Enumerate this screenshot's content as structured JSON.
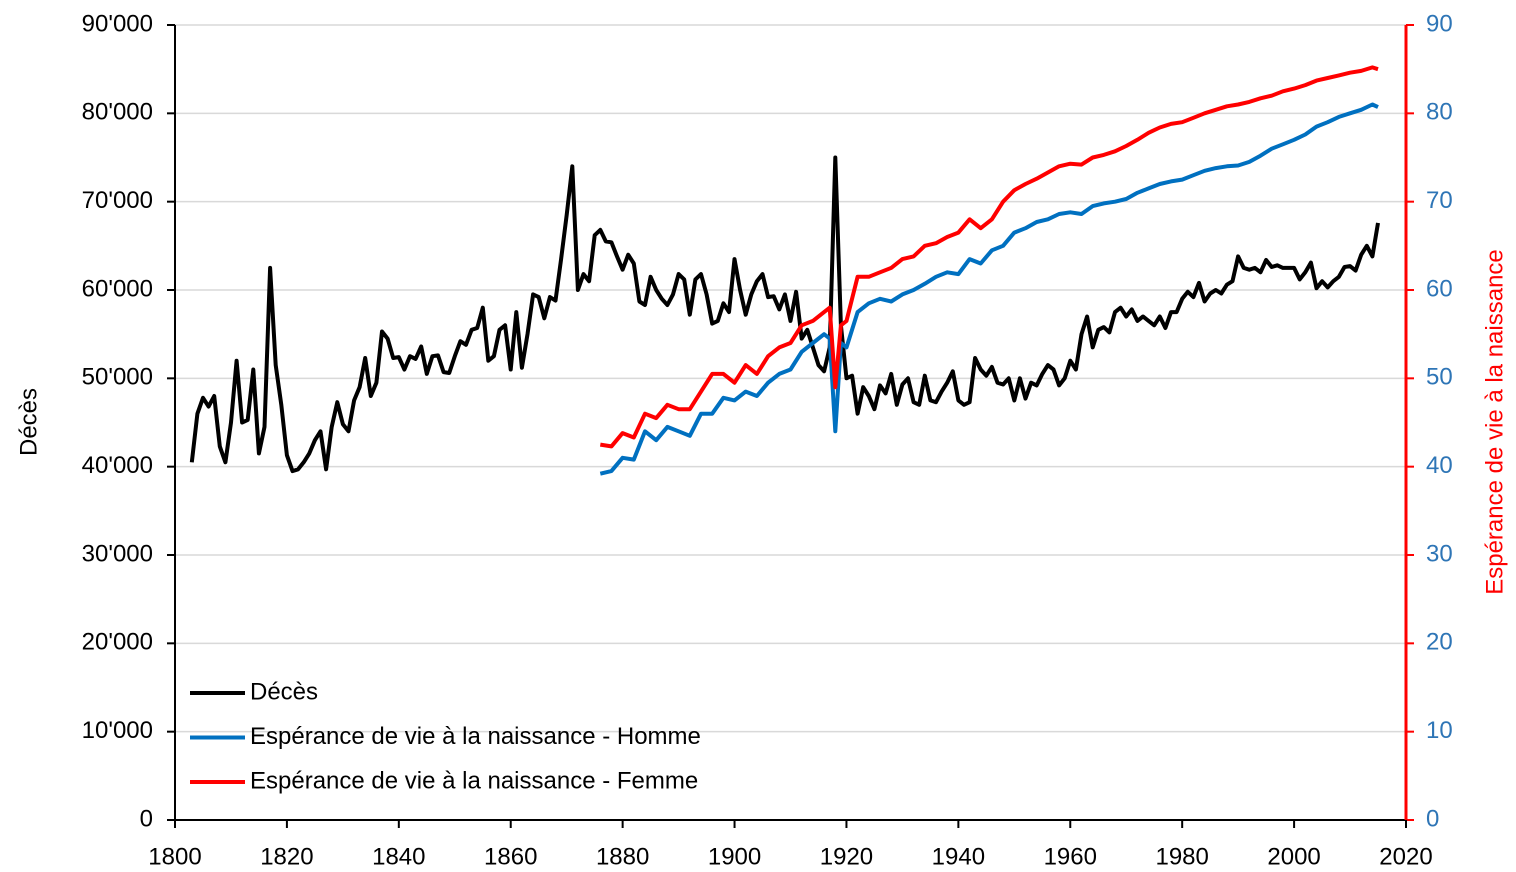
{
  "chart_data": {
    "type": "line",
    "y_label": "Décès",
    "y2_label": "Espérance de vie à la naissance",
    "xlim": [
      1800,
      2020
    ],
    "xticks": [
      1800,
      1820,
      1840,
      1860,
      1880,
      1900,
      1920,
      1940,
      1960,
      1980,
      2000,
      2020
    ],
    "ylim": [
      0,
      90000
    ],
    "yticks": [
      {
        "value": 0,
        "label": "0"
      },
      {
        "value": 10000,
        "label": "10'000"
      },
      {
        "value": 20000,
        "label": "20'000"
      },
      {
        "value": 30000,
        "label": "30'000"
      },
      {
        "value": 40000,
        "label": "40'000"
      },
      {
        "value": 50000,
        "label": "50'000"
      },
      {
        "value": 60000,
        "label": "60'000"
      },
      {
        "value": 70000,
        "label": "70'000"
      },
      {
        "value": 80000,
        "label": "80'000"
      },
      {
        "value": 90000,
        "label": "90'000"
      }
    ],
    "y2lim": [
      0,
      90
    ],
    "y2ticks": [
      0,
      10,
      20,
      30,
      40,
      50,
      60,
      70,
      80,
      90
    ],
    "grid": true,
    "legend": "lower-left",
    "series": [
      {
        "name": "Décès",
        "color": "#000000",
        "x": [
          1803,
          1804,
          1805,
          1806,
          1807,
          1808,
          1809,
          1810,
          1811,
          1812,
          1813,
          1814,
          1815,
          1816,
          1817,
          1818,
          1819,
          1820,
          1821,
          1822,
          1823,
          1824,
          1825,
          1826,
          1827,
          1828,
          1829,
          1830,
          1831,
          1832,
          1833,
          1834,
          1835,
          1836,
          1837,
          1838,
          1839,
          1840,
          1841,
          1842,
          1843,
          1844,
          1845,
          1846,
          1847,
          1848,
          1849,
          1850,
          1851,
          1852,
          1853,
          1854,
          1855,
          1856,
          1857,
          1858,
          1859,
          1860,
          1861,
          1862,
          1863,
          1864,
          1865,
          1866,
          1867,
          1868,
          1869,
          1870,
          1871,
          1872,
          1873,
          1874,
          1875,
          1876,
          1877,
          1878,
          1879,
          1880,
          1881,
          1882,
          1883,
          1884,
          1885,
          1886,
          1887,
          1888,
          1889,
          1890,
          1891,
          1892,
          1893,
          1894,
          1895,
          1896,
          1897,
          1898,
          1899,
          1900,
          1901,
          1902,
          1903,
          1904,
          1905,
          1906,
          1907,
          1908,
          1909,
          1910,
          1911,
          1912,
          1913,
          1914,
          1915,
          1916,
          1917,
          1918,
          1919,
          1920,
          1921,
          1922,
          1923,
          1924,
          1925,
          1926,
          1927,
          1928,
          1929,
          1930,
          1931,
          1932,
          1933,
          1934,
          1935,
          1936,
          1937,
          1938,
          1939,
          1940,
          1941,
          1942,
          1943,
          1944,
          1945,
          1946,
          1947,
          1948,
          1949,
          1950,
          1951,
          1952,
          1953,
          1954,
          1955,
          1956,
          1957,
          1958,
          1959,
          1960,
          1961,
          1962,
          1963,
          1964,
          1965,
          1966,
          1967,
          1968,
          1969,
          1970,
          1971,
          1972,
          1973,
          1974,
          1975,
          1976,
          1977,
          1978,
          1979,
          1980,
          1981,
          1982,
          1983,
          1984,
          1985,
          1986,
          1987,
          1988,
          1989,
          1990,
          1991,
          1992,
          1993,
          1994,
          1995,
          1996,
          1997,
          1998,
          1999,
          2000,
          2001,
          2002,
          2003,
          2004,
          2005,
          2006,
          2007,
          2008,
          2009,
          2010,
          2011,
          2012,
          2013,
          2014,
          2015
        ],
        "values": [
          40500,
          46000,
          47800,
          46800,
          48000,
          42300,
          40500,
          45000,
          52000,
          45000,
          45300,
          51000,
          41500,
          44500,
          62500,
          51500,
          47000,
          41300,
          39500,
          39700,
          40500,
          41500,
          43000,
          44000,
          39700,
          44500,
          47300,
          44800,
          44000,
          47500,
          49000,
          52300,
          48000,
          49500,
          55300,
          54500,
          52300,
          52400,
          51000,
          52500,
          52200,
          53600,
          50500,
          52500,
          52600,
          50700,
          50600,
          52500,
          54200,
          53800,
          55500,
          55700,
          58000,
          52000,
          52500,
          55500,
          56000,
          51000,
          57500,
          51200,
          55000,
          59500,
          59200,
          56800,
          59200,
          58800,
          63500,
          68500,
          74000,
          60000,
          61800,
          61000,
          66200,
          66800,
          65500,
          65400,
          63800,
          62300,
          64000,
          63000,
          58700,
          58300,
          61500,
          60000,
          59000,
          58300,
          59500,
          61800,
          61200,
          57200,
          61200,
          61800,
          59500,
          56200,
          56500,
          58500,
          57500,
          63500,
          60000,
          57200,
          59500,
          61000,
          61800,
          59200,
          59300,
          57800,
          59500,
          56500,
          59800,
          54500,
          55500,
          53500,
          51500,
          50800,
          53500,
          75000,
          56000,
          50000,
          50300,
          46000,
          49000,
          48000,
          46500,
          49200,
          48300,
          50500,
          47000,
          49300,
          50000,
          47300,
          47000,
          50300,
          47500,
          47300,
          48500,
          49500,
          50800,
          47500,
          47000,
          47300,
          52300,
          51000,
          50300,
          51300,
          49500,
          49300,
          50000,
          47500,
          50000,
          47700,
          49500,
          49200,
          50500,
          51500,
          51000,
          49200,
          50000,
          52000,
          51000,
          55000,
          57000,
          53500,
          55500,
          55800,
          55200,
          57500,
          58000,
          57000,
          57800,
          56500,
          57000,
          56500,
          56000,
          57000,
          55700,
          57500,
          57500,
          59000,
          59800,
          59200,
          60800,
          58700,
          59600,
          60000,
          59600,
          60600,
          61000,
          63800,
          62500,
          62300,
          62500,
          62000,
          63400,
          62600,
          62800,
          62500,
          62500,
          62500,
          61200,
          62000,
          63100,
          60200,
          61000,
          60300,
          61000,
          61500,
          62600,
          62700,
          62200,
          64000,
          65000,
          63800,
          67600
        ]
      },
      {
        "name": "Espérance de vie à la naissance - Homme",
        "color": "#0070c0",
        "axis": "y2",
        "x": [
          1876,
          1878,
          1880,
          1882,
          1884,
          1886,
          1888,
          1890,
          1892,
          1894,
          1896,
          1898,
          1900,
          1902,
          1904,
          1906,
          1908,
          1910,
          1912,
          1914,
          1916,
          1917,
          1918,
          1919,
          1920,
          1922,
          1924,
          1926,
          1928,
          1930,
          1932,
          1934,
          1936,
          1938,
          1940,
          1942,
          1944,
          1946,
          1948,
          1950,
          1952,
          1954,
          1956,
          1958,
          1960,
          1962,
          1964,
          1966,
          1968,
          1970,
          1972,
          1974,
          1976,
          1978,
          1980,
          1982,
          1984,
          1986,
          1988,
          1990,
          1992,
          1994,
          1996,
          1998,
          2000,
          2002,
          2004,
          2006,
          2008,
          2010,
          2012,
          2014,
          2015
        ],
        "values": [
          39.2,
          39.5,
          41,
          40.8,
          44,
          43,
          44.5,
          44,
          43.5,
          46,
          46,
          47.8,
          47.5,
          48.5,
          48,
          49.5,
          50.5,
          51,
          53,
          54,
          55,
          54.5,
          44,
          54,
          53.5,
          57.5,
          58.5,
          59,
          58.7,
          59.5,
          60,
          60.7,
          61.5,
          62,
          61.8,
          63.5,
          63,
          64.5,
          65,
          66.5,
          67,
          67.7,
          68,
          68.6,
          68.8,
          68.6,
          69.5,
          69.8,
          70,
          70.3,
          71,
          71.5,
          72,
          72.3,
          72.5,
          73,
          73.5,
          73.8,
          74,
          74.1,
          74.5,
          75.2,
          76,
          76.5,
          77,
          77.6,
          78.5,
          79,
          79.6,
          80,
          80.4,
          81,
          80.7
        ]
      },
      {
        "name": "Espérance de vie à la naissance - Femme",
        "color": "#ff0000",
        "axis": "y2",
        "x": [
          1876,
          1878,
          1880,
          1882,
          1884,
          1886,
          1888,
          1890,
          1892,
          1894,
          1896,
          1898,
          1900,
          1902,
          1904,
          1906,
          1908,
          1910,
          1912,
          1914,
          1916,
          1917,
          1918,
          1919,
          1920,
          1922,
          1924,
          1926,
          1928,
          1930,
          1932,
          1934,
          1936,
          1938,
          1940,
          1942,
          1944,
          1946,
          1948,
          1950,
          1952,
          1954,
          1956,
          1958,
          1960,
          1962,
          1964,
          1966,
          1968,
          1970,
          1972,
          1974,
          1976,
          1978,
          1980,
          1982,
          1984,
          1986,
          1988,
          1990,
          1992,
          1994,
          1996,
          1998,
          2000,
          2002,
          2004,
          2006,
          2008,
          2010,
          2012,
          2014,
          2015
        ],
        "values": [
          42.5,
          42.3,
          43.8,
          43.3,
          46,
          45.5,
          47,
          46.5,
          46.5,
          48.5,
          50.5,
          50.5,
          49.5,
          51.5,
          50.5,
          52.5,
          53.5,
          54,
          56,
          56.5,
          57.5,
          58,
          49,
          56,
          56.5,
          61.5,
          61.5,
          62,
          62.5,
          63.5,
          63.8,
          65,
          65.3,
          66,
          66.5,
          68,
          67,
          68,
          70,
          71.3,
          72,
          72.6,
          73.3,
          74,
          74.3,
          74.2,
          75,
          75.3,
          75.7,
          76.3,
          77,
          77.8,
          78.4,
          78.8,
          79,
          79.5,
          80,
          80.4,
          80.8,
          81,
          81.3,
          81.7,
          82,
          82.5,
          82.8,
          83.2,
          83.7,
          84,
          84.3,
          84.6,
          84.8,
          85.2,
          85
        ]
      }
    ]
  }
}
